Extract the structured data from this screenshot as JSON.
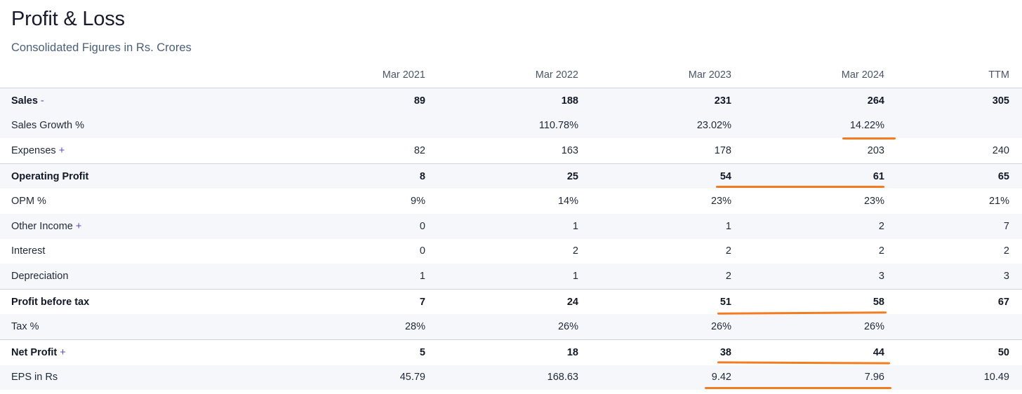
{
  "header": {
    "title": "Profit & Loss",
    "subtitle": "Consolidated Figures in Rs. Crores"
  },
  "table": {
    "columns": [
      "",
      "Mar 2021",
      "Mar 2022",
      "Mar 2023",
      "Mar 2024",
      "TTM"
    ],
    "rows": [
      {
        "label": "Sales",
        "toggle": "-",
        "bold": true,
        "alt": true,
        "sep": false,
        "values": [
          "89",
          "188",
          "231",
          "264",
          "305"
        ]
      },
      {
        "label": "Sales Growth %",
        "toggle": "",
        "bold": false,
        "alt": true,
        "sep": false,
        "values": [
          "",
          "110.78%",
          "23.02%",
          "14.22%",
          ""
        ]
      },
      {
        "label": "Expenses",
        "toggle": "+",
        "bold": false,
        "alt": false,
        "sep": false,
        "values": [
          "82",
          "163",
          "178",
          "203",
          "240"
        ]
      },
      {
        "label": "Operating Profit",
        "toggle": "",
        "bold": true,
        "alt": true,
        "sep": true,
        "values": [
          "8",
          "25",
          "54",
          "61",
          "65"
        ]
      },
      {
        "label": "OPM %",
        "toggle": "",
        "bold": false,
        "alt": false,
        "sep": false,
        "values": [
          "9%",
          "14%",
          "23%",
          "23%",
          "21%"
        ]
      },
      {
        "label": "Other Income",
        "toggle": "+",
        "bold": false,
        "alt": true,
        "sep": false,
        "values": [
          "0",
          "1",
          "1",
          "2",
          "7"
        ]
      },
      {
        "label": "Interest",
        "toggle": "",
        "bold": false,
        "alt": false,
        "sep": false,
        "values": [
          "0",
          "2",
          "2",
          "2",
          "2"
        ]
      },
      {
        "label": "Depreciation",
        "toggle": "",
        "bold": false,
        "alt": true,
        "sep": false,
        "values": [
          "1",
          "1",
          "2",
          "3",
          "3"
        ]
      },
      {
        "label": "Profit before tax",
        "toggle": "",
        "bold": true,
        "alt": false,
        "sep": true,
        "values": [
          "7",
          "24",
          "51",
          "58",
          "67"
        ]
      },
      {
        "label": "Tax %",
        "toggle": "",
        "bold": false,
        "alt": true,
        "sep": false,
        "values": [
          "28%",
          "26%",
          "26%",
          "26%",
          ""
        ]
      },
      {
        "label": "Net Profit",
        "toggle": "+",
        "bold": true,
        "alt": false,
        "sep": true,
        "values": [
          "5",
          "18",
          "38",
          "44",
          "50"
        ]
      },
      {
        "label": "EPS in Rs",
        "toggle": "",
        "bold": false,
        "alt": true,
        "sep": false,
        "values": [
          "45.79",
          "168.63",
          "9.42",
          "7.96",
          "10.49"
        ]
      }
    ]
  },
  "highlight_color": "#f47c20",
  "toggle_color": "#5a4ad1"
}
